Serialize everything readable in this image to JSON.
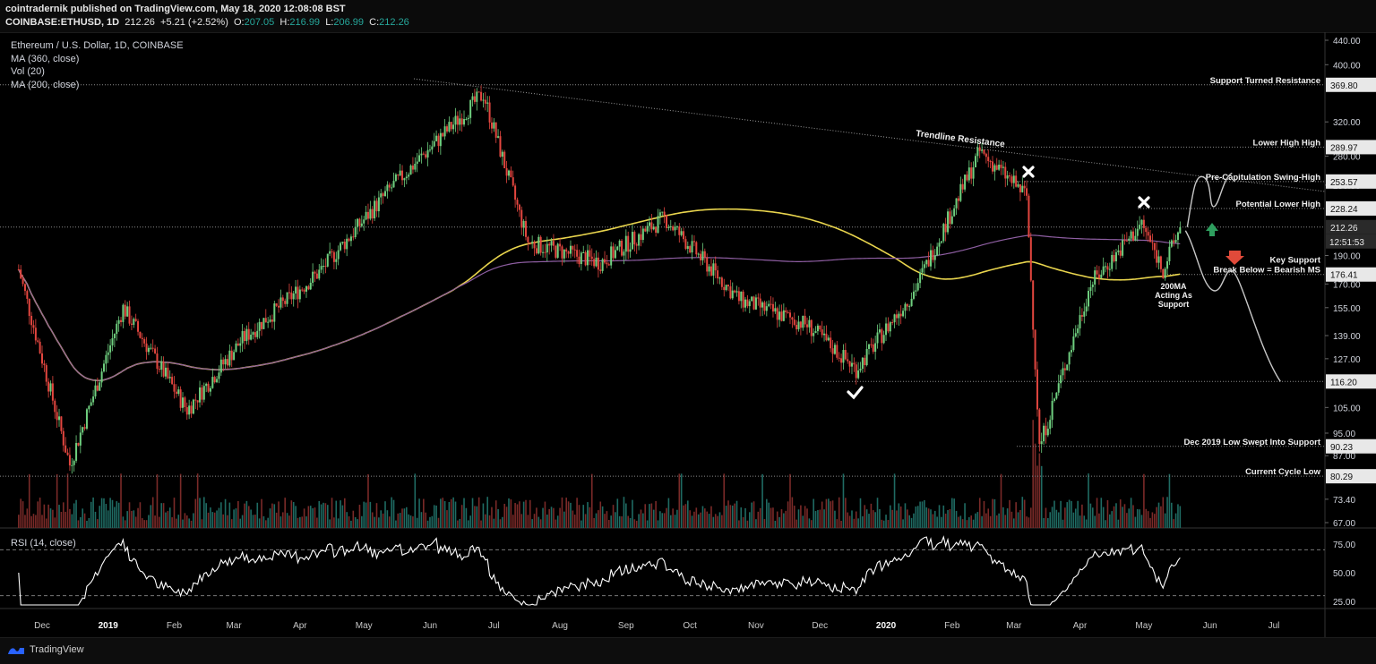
{
  "header": {
    "published_line": "cointradernik published on TradingView.com, May 18, 2020 12:08:08 BST",
    "symbol": "COINBASE:ETHUSD, 1D",
    "last": "212.26",
    "change": "+5.21 (+2.52%)",
    "o_label": "O:",
    "o_value": "207.05",
    "h_label": "H:",
    "h_value": "216.99",
    "l_label": "L:",
    "l_value": "206.99",
    "c_label": "C:",
    "c_value": "212.26"
  },
  "legend": {
    "title": "Ethereum / U.S. Dollar, 1D, COINBASE",
    "ma360": "MA (360, close)",
    "vol": "Vol (20)",
    "ma200": "MA (200, close)"
  },
  "rsi_label": "RSI (14, close)",
  "footer": {
    "brand": "TradingView"
  },
  "colors": {
    "up": "#26a69a",
    "down": "#ef5350",
    "up_candle": "#6fcf7f",
    "down_candle": "#e3463f",
    "ma200": "#e8d44d",
    "ma360": "#8e5ea2",
    "rsi": "#ffffff",
    "accent_green": "#2e9e5e",
    "accent_red": "#e04a3a"
  },
  "chart_data": {
    "type": "candlestick",
    "price_axis_ticks": [
      "440.00",
      "400.00",
      "320.00",
      "280.00",
      "250.00",
      "190.00",
      "170.00",
      "155.00",
      "139.00",
      "127.00",
      "105.00",
      "95.00",
      "87.00",
      "73.40",
      "67.00"
    ],
    "price_markers": [
      {
        "value": "369.80",
        "annotation": "Support Turned Resistance"
      },
      {
        "value": "289.97",
        "annotation": "Lower High High"
      },
      {
        "value": "253.57",
        "annotation": "Pre-Capitulation Swing-High"
      },
      {
        "value": "228.24",
        "annotation": "Potential Lower High"
      },
      {
        "value": "212.26",
        "annotation": ""
      },
      {
        "value": "176.41",
        "annotation": "Key Support\nBreak Below = Bearish MS"
      },
      {
        "value": "116.20",
        "annotation": ""
      },
      {
        "value": "90.23",
        "annotation": "Dec 2019 Low Swept Into Support"
      },
      {
        "value": "80.29",
        "annotation": "Current Cycle Low"
      }
    ],
    "countdown": "12:51:53",
    "x_axis_labels": [
      "Dec",
      "2019",
      "Feb",
      "Mar",
      "Apr",
      "May",
      "Jun",
      "Jul",
      "Aug",
      "Sep",
      "Oct",
      "Nov",
      "Dec",
      "2020",
      "Feb",
      "Mar",
      "Apr",
      "May",
      "Jun",
      "Jul"
    ],
    "annotations": [
      "Trendline Resistance",
      "200MA\nActing As\nSupport"
    ],
    "rsi_ticks": [
      "75.00",
      "50.00",
      "25.00"
    ],
    "rsi_levels": [
      70,
      30
    ],
    "price_path_approx": [
      {
        "date": "2018-11-20",
        "close": 180
      },
      {
        "date": "2018-12-14",
        "close": 84
      },
      {
        "date": "2019-01-08",
        "close": 155
      },
      {
        "date": "2019-02-07",
        "close": 104
      },
      {
        "date": "2019-03-05",
        "close": 137
      },
      {
        "date": "2019-04-10",
        "close": 178
      },
      {
        "date": "2019-05-14",
        "close": 248
      },
      {
        "date": "2019-06-26",
        "close": 357
      },
      {
        "date": "2019-07-17",
        "close": 200
      },
      {
        "date": "2019-08-20",
        "close": 185
      },
      {
        "date": "2019-09-19",
        "close": 220
      },
      {
        "date": "2019-10-24",
        "close": 160
      },
      {
        "date": "2019-11-25",
        "close": 145
      },
      {
        "date": "2019-12-18",
        "close": 122
      },
      {
        "date": "2020-01-14",
        "close": 165
      },
      {
        "date": "2020-02-14",
        "close": 285
      },
      {
        "date": "2020-03-07",
        "close": 240
      },
      {
        "date": "2020-03-13",
        "close": 90
      },
      {
        "date": "2020-04-06",
        "close": 170
      },
      {
        "date": "2020-04-30",
        "close": 215
      },
      {
        "date": "2020-05-10",
        "close": 180
      },
      {
        "date": "2020-05-18",
        "close": 212
      }
    ]
  }
}
